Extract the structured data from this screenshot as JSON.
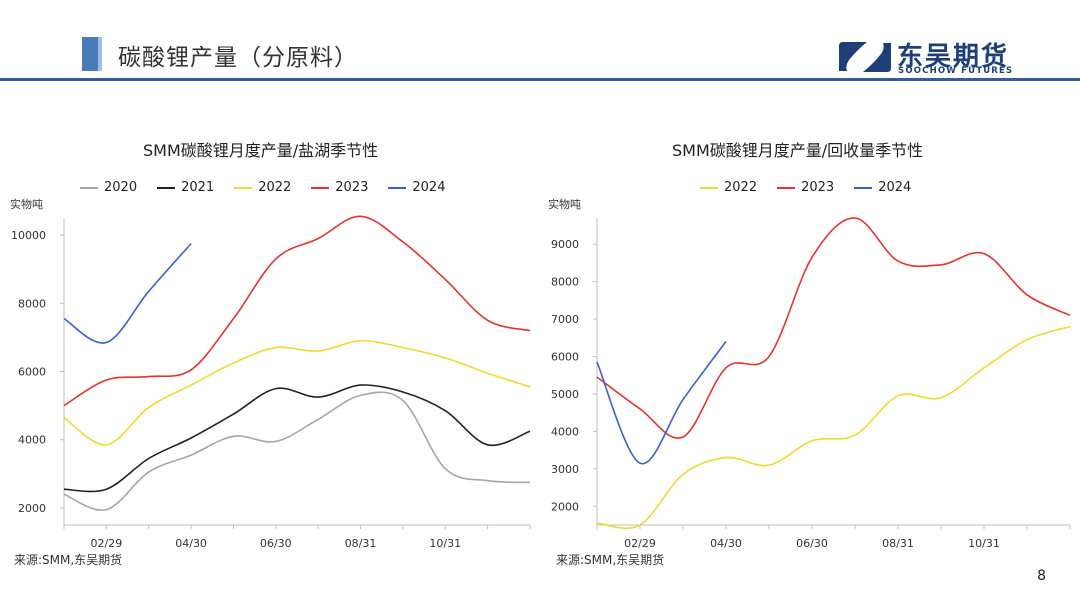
{
  "header": {
    "title": "碳酸锂产量（分原料）"
  },
  "logo": {
    "name_cn": "东吴期货",
    "name_en": "SOOCHOW FUTURES",
    "color": "#1f3f78"
  },
  "page_number": "8",
  "chart_data": [
    {
      "type": "line",
      "title": "SMM碳酸锂月度产量/盐湖季节性",
      "ylabel": "实物吨",
      "ylim": [
        1500,
        10500
      ],
      "yticks": [
        2000,
        4000,
        6000,
        8000,
        10000
      ],
      "x_ticks": [
        "02/29",
        "04/30",
        "06/30",
        "08/31",
        "10/31"
      ],
      "x_months": [
        "01",
        "02",
        "03",
        "04",
        "05",
        "06",
        "07",
        "08",
        "09",
        "10",
        "11",
        "12"
      ],
      "grid": false,
      "legend_position": "top",
      "source": "来源:SMM,东吴期货",
      "series": [
        {
          "name": "2020",
          "color": "#a6a6a6",
          "values": [
            2400,
            1950,
            3050,
            3550,
            4100,
            3950,
            4600,
            5300,
            5150,
            3150,
            2800,
            2750
          ]
        },
        {
          "name": "2021",
          "color": "#222222",
          "values": [
            2550,
            2550,
            3450,
            4050,
            4750,
            5500,
            5250,
            5600,
            5400,
            4850,
            3850,
            4250
          ]
        },
        {
          "name": "2022",
          "color": "#f2d930",
          "values": [
            4650,
            3850,
            4950,
            5600,
            6250,
            6700,
            6600,
            6900,
            6700,
            6400,
            5950,
            5550
          ]
        },
        {
          "name": "2023",
          "color": "#e8322b",
          "values": [
            5000,
            5750,
            5850,
            6050,
            7550,
            9300,
            9900,
            10550,
            9800,
            8700,
            7500,
            7200
          ]
        },
        {
          "name": "2024",
          "color": "#3a5fd9",
          "values": [
            7550,
            6850,
            8350,
            9750
          ]
        }
      ]
    },
    {
      "type": "line",
      "title": "SMM碳酸锂月度产量/回收量季节性",
      "ylabel": "实物吨",
      "ylim": [
        1500,
        9700
      ],
      "yticks": [
        2000,
        3000,
        4000,
        5000,
        6000,
        7000,
        8000,
        9000
      ],
      "x_ticks": [
        "02/29",
        "04/30",
        "06/30",
        "08/31",
        "10/31"
      ],
      "x_months": [
        "01",
        "02",
        "03",
        "04",
        "05",
        "06",
        "07",
        "08",
        "09",
        "10",
        "11",
        "12"
      ],
      "grid": false,
      "legend_position": "top",
      "source": "来源:SMM,东吴期货",
      "series": [
        {
          "name": "2022",
          "color": "#f2d930",
          "values": [
            1550,
            1500,
            2850,
            3300,
            3100,
            3750,
            3900,
            4950,
            4900,
            5700,
            6450,
            6800
          ]
        },
        {
          "name": "2023",
          "color": "#e8322b",
          "values": [
            5450,
            4600,
            3850,
            5700,
            6000,
            8650,
            9700,
            8550,
            8450,
            8750,
            7650,
            7100
          ]
        },
        {
          "name": "2024",
          "color": "#3a5fd9",
          "values": [
            5850,
            3150,
            4850,
            6400
          ]
        }
      ]
    }
  ]
}
